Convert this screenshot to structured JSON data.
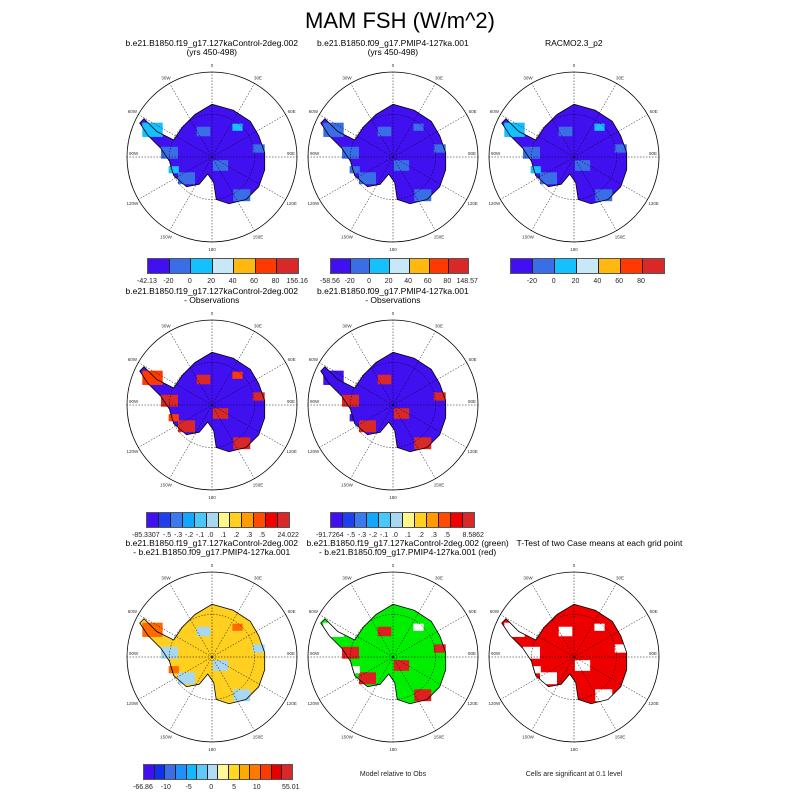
{
  "title": "MAM FSH (W/m^2)",
  "lon_labels": [
    "0",
    "30E",
    "60E",
    "90E",
    "120E",
    "150E",
    "180",
    "150W",
    "120W",
    "90W",
    "60W",
    "30W"
  ],
  "panels": [
    {
      "title1": "b.e21.B1850.f19_g17.127kaControl-2deg.002",
      "title2": "(yrs 450-498)",
      "fill": "#4010f0",
      "patch": "#3a6ee6",
      "patch2": "#15c0ff",
      "colorbar": {
        "colors": [
          "#4010f0",
          "#3a6ee6",
          "#15c0ff",
          "#c8e8f8",
          "#ffb810",
          "#ff3a00",
          "#d82828"
        ],
        "labels": [
          "-42.13",
          "-20",
          "0",
          "20",
          "40",
          "60",
          "80",
          "156.16"
        ]
      }
    },
    {
      "title1": "b.e21.B1850.f09_g17.PMIP4-127ka.001",
      "title2": "(yrs 450-498)",
      "fill": "#4010f0",
      "patch": "#3a6ee6",
      "patch2": "#3a6ee6",
      "colorbar": {
        "colors": [
          "#4010f0",
          "#3a6ee6",
          "#15c0ff",
          "#c8e8f8",
          "#ffb810",
          "#ff3a00",
          "#d82828"
        ],
        "labels": [
          "-58.56",
          "-20",
          "0",
          "20",
          "40",
          "60",
          "80",
          "148.57"
        ]
      }
    },
    {
      "title1": "RACMO2.3_p2",
      "title2": "",
      "fill": "#4010f0",
      "patch": "#3a6ee6",
      "patch2": "#15c0ff",
      "colorbar": {
        "colors": [
          "#4010f0",
          "#3a6ee6",
          "#15c0ff",
          "#c8e8f8",
          "#ffb810",
          "#ff3a00",
          "#d82828"
        ],
        "labels": [
          "",
          "-20",
          "0",
          "20",
          "40",
          "60",
          "80",
          ""
        ]
      }
    },
    {
      "title1": "b.e21.B1850.f19_g17.127kaControl-2deg.002",
      "title2": "- Observations",
      "fill": "#4010f0",
      "patch": "#d82828",
      "patch2": "#ff3a00",
      "colorbar": {
        "colors": [
          "#4010f0",
          "#2040f0",
          "#3a7aee",
          "#10a8ff",
          "#48c8f8",
          "#a8d8f0",
          "#fff888",
          "#ffd020",
          "#ff9a00",
          "#ff4a00",
          "#f00000",
          "#d82828"
        ],
        "labels": [
          "-85.3307",
          "-.5",
          "-.3",
          "-.2",
          "-.1",
          ".0",
          ".1",
          ".2",
          ".3",
          ".5",
          "",
          "24.022"
        ]
      }
    },
    {
      "title1": "b.e21.B1850.f09_g17.PMIP4-127ka.001",
      "title2": "- Observations",
      "fill": "#4010f0",
      "patch": "#d82828",
      "patch2": "#4010f0",
      "colorbar": {
        "colors": [
          "#4010f0",
          "#2040f0",
          "#3a7aee",
          "#10a8ff",
          "#48c8f8",
          "#a8d8f0",
          "#fff888",
          "#ffd020",
          "#ff9a00",
          "#ff4a00",
          "#f00000",
          "#d82828"
        ],
        "labels": [
          "-91.7264",
          "-.5",
          "-.3",
          "-.2",
          "-.1",
          ".0",
          ".1",
          ".2",
          ".3",
          ".5",
          "",
          "8.5862"
        ]
      }
    },
    {
      "title1": "b.e21.B1850.f19_g17.127kaControl-2deg.002",
      "title2": "- b.e21.B1850.f09_g17.PMIP4-127ka.001",
      "fill": "#ffd020",
      "patch": "#a8d8f0",
      "patch2": "#ff6a00",
      "colorbar": {
        "colors": [
          "#4010f0",
          "#1030f0",
          "#3a6ee6",
          "#2090ff",
          "#10b8ff",
          "#60c8f8",
          "#b0dcf4",
          "#fff898",
          "#ffd820",
          "#ffaa00",
          "#ff7800",
          "#ff3a00",
          "#e80000",
          "#d82828"
        ],
        "labels": [
          "-66.86",
          "",
          "-10",
          "",
          "-5",
          "",
          "0",
          "",
          "5",
          "",
          "10",
          "",
          "",
          "55.01"
        ]
      }
    },
    {
      "title1": "b.e21.B1850.f19_g17.127kaControl-2deg.002 (green)",
      "title2": "- b.e21.B1850.f09_g17.PMIP4-127ka.001 (red)",
      "fill": "#00ee00",
      "patch": "#e02020",
      "patch2": "#ffffff",
      "note": "Model relative to Obs"
    },
    {
      "title1": "T-Test of two Case means at each grid point",
      "title2": "",
      "fill": "#ee0000",
      "patch": "#ffffff",
      "patch2": "#ffffff",
      "note": "Cells are significant at 0.1 level"
    }
  ]
}
